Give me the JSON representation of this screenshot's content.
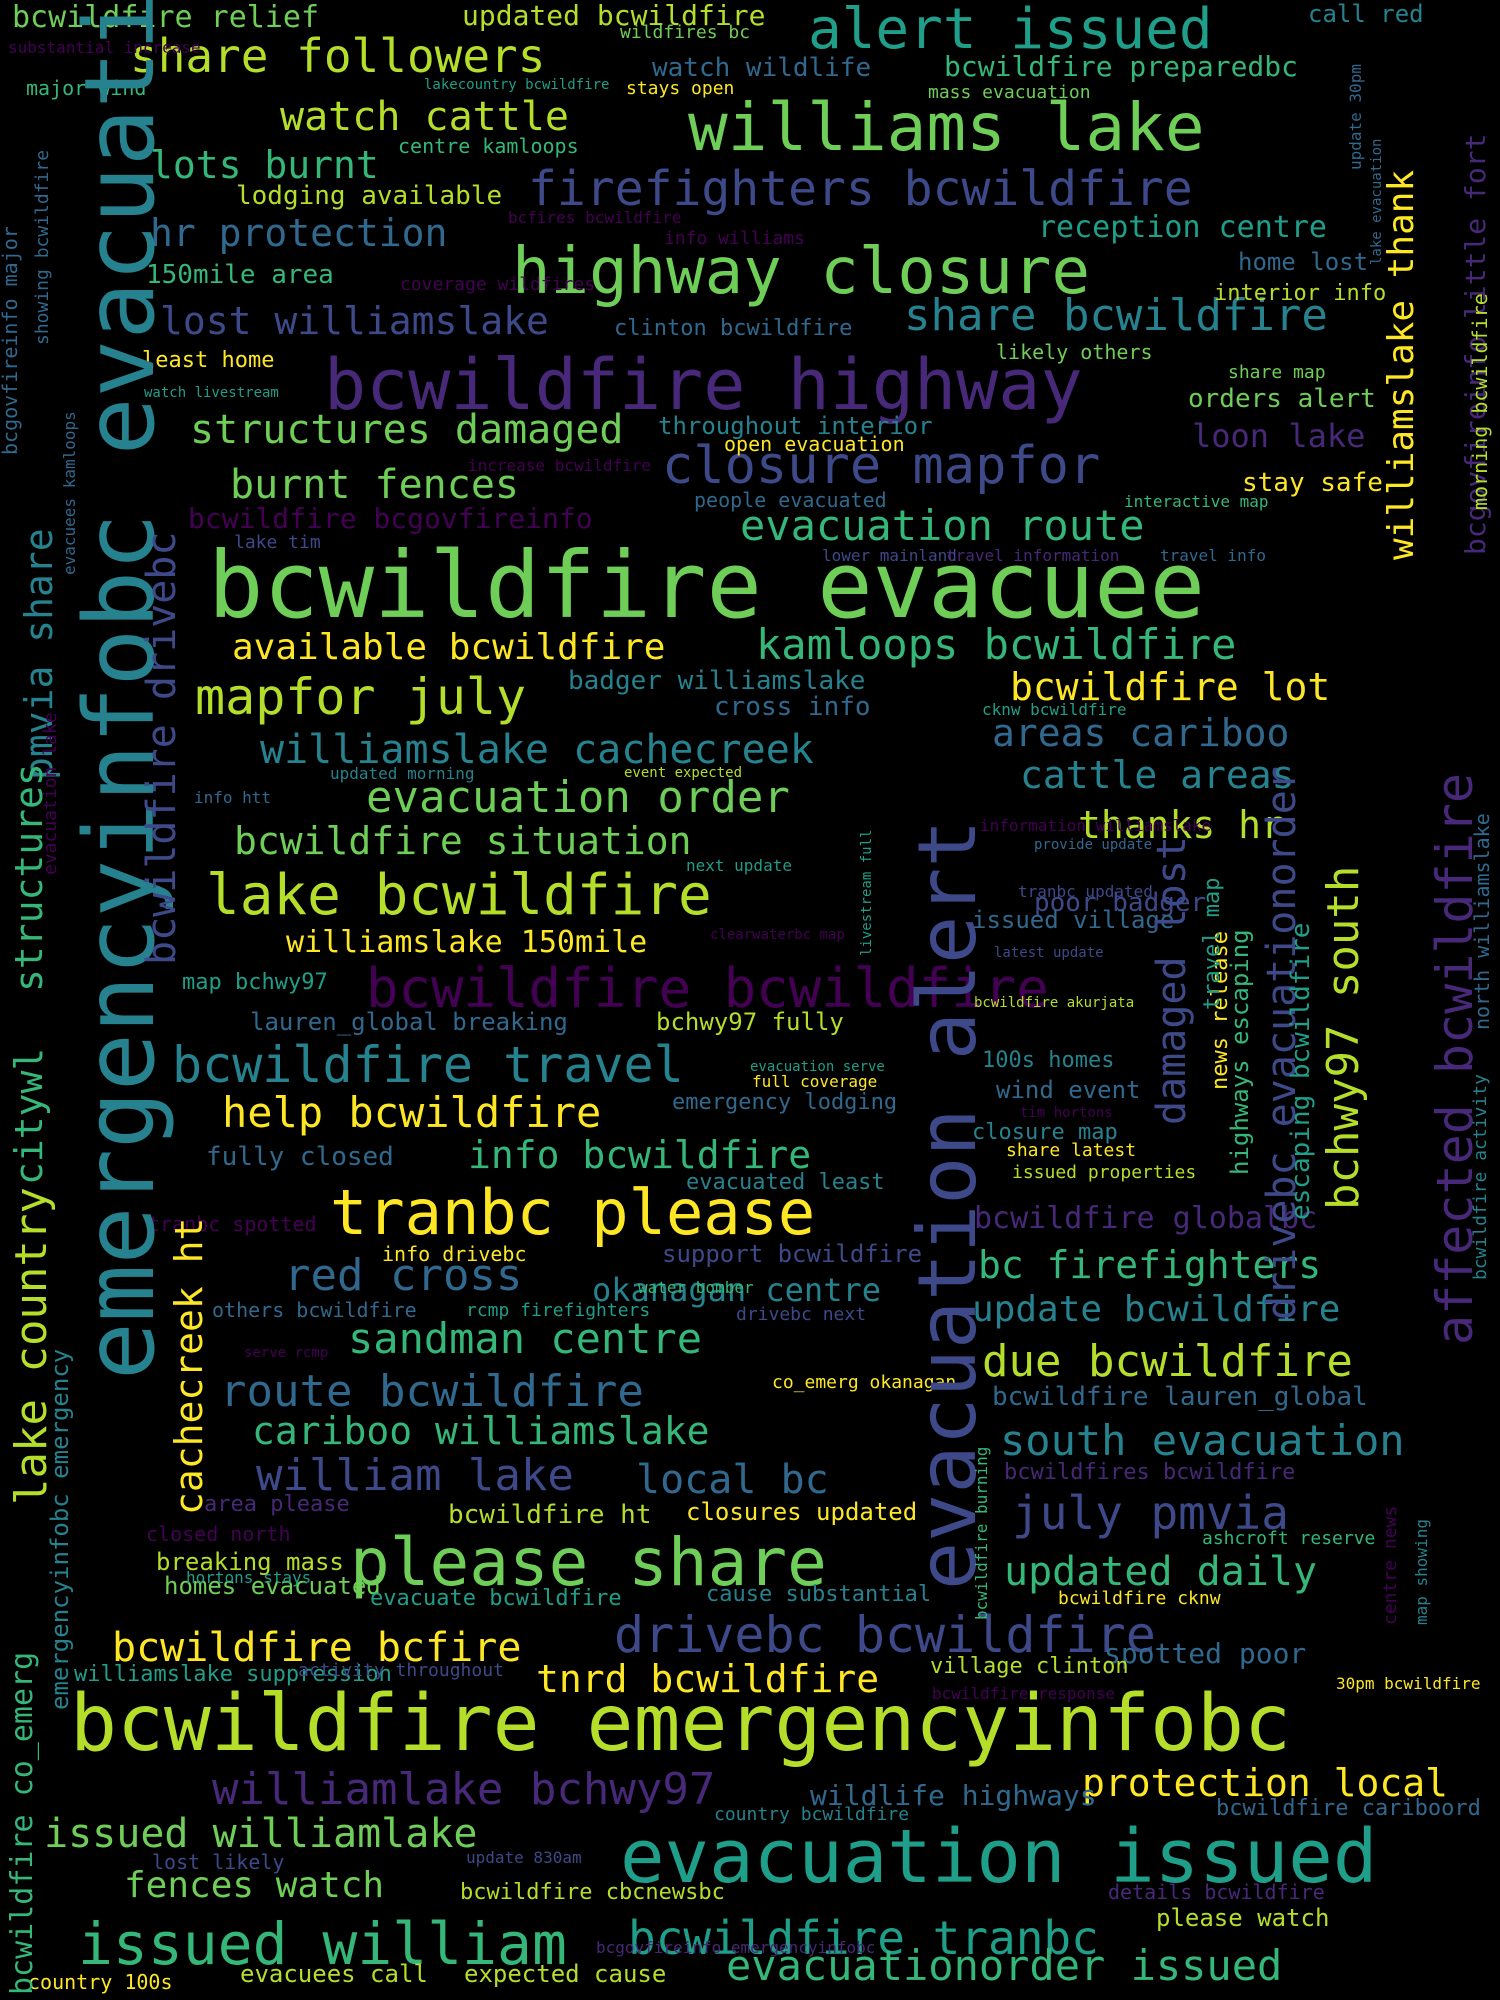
{
  "palette": {
    "background": "#000000",
    "yellow": "#fde725",
    "lime": "#b5de2b",
    "green": "#6ece58",
    "mint": "#35b779",
    "teal": "#1f9e89",
    "cyan": "#26828e",
    "blue": "#31688e",
    "indigo": "#3e4989",
    "violet": "#482878",
    "purple": "#440154"
  },
  "words": [
    {
      "text": "bcwildfire evacuee",
      "color": "#6ece58"
    },
    {
      "text": "emergencyinfobc evacuation",
      "color": "#26828e"
    },
    {
      "text": "evacuation alert",
      "color": "#3e4989"
    },
    {
      "text": "bcwildfire emergencyinfobc",
      "color": "#b5de2b"
    },
    {
      "text": "evacuation issued",
      "color": "#1f9e89"
    },
    {
      "text": "bcwildfire highway",
      "color": "#482878"
    },
    {
      "text": "highway closure",
      "color": "#6ece58"
    },
    {
      "text": "williams lake",
      "color": "#6ece58"
    },
    {
      "text": "tranbc please",
      "color": "#fde725"
    },
    {
      "text": "please share",
      "color": "#6ece58"
    },
    {
      "text": "issued william",
      "color": "#35b779"
    },
    {
      "text": "alert issued",
      "color": "#1f9e89"
    },
    {
      "text": "bcwildfire bcwildfire",
      "color": "#440154"
    },
    {
      "text": "closure mapfor",
      "color": "#3e4989"
    },
    {
      "text": "lake bcwildfire",
      "color": "#b5de2b"
    },
    {
      "text": "drivebc bcwildfire",
      "color": "#3e4989"
    },
    {
      "text": "affected bcwildfire",
      "color": "#482878"
    },
    {
      "text": "firefighters bcwildfire",
      "color": "#3e4989"
    },
    {
      "text": "mapfor july",
      "color": "#b5de2b"
    },
    {
      "text": "share followers",
      "color": "#b5de2b"
    },
    {
      "text": "bcwildfire travel",
      "color": "#26828e"
    },
    {
      "text": "lake country",
      "color": "#b5de2b"
    },
    {
      "text": "bcwildfire tranbc",
      "color": "#1f9e89"
    },
    {
      "text": "evacuationorder issued",
      "color": "#35b779"
    },
    {
      "text": "williamlake bchwy97",
      "color": "#482878"
    },
    {
      "text": "july pmvia",
      "color": "#3e4989"
    },
    {
      "text": "william lake",
      "color": "#3e4989"
    },
    {
      "text": "south evacuation",
      "color": "#26828e"
    },
    {
      "text": "evacuation order",
      "color": "#6ece58"
    },
    {
      "text": "bcwildfire drivebc",
      "color": "#3e4989"
    },
    {
      "text": "damaged lost",
      "color": "#3e4989"
    },
    {
      "text": "drivebc evacuationorder",
      "color": "#3e4989"
    },
    {
      "text": "bchwy97 south",
      "color": "#b5de2b"
    },
    {
      "text": "share bcwildfire",
      "color": "#26828e"
    },
    {
      "text": "kamloops bcwildfire",
      "color": "#35b779"
    },
    {
      "text": "evacuation route",
      "color": "#35b779"
    },
    {
      "text": "red cross",
      "color": "#31688e"
    },
    {
      "text": "sandman centre",
      "color": "#35b779"
    },
    {
      "text": "route bcwildfire",
      "color": "#31688e"
    },
    {
      "text": "due bcwildfire",
      "color": "#b5de2b"
    },
    {
      "text": "structures damaged",
      "color": "#6ece58"
    },
    {
      "text": "burnt fences",
      "color": "#6ece58"
    },
    {
      "text": "bcwildfire situation",
      "color": "#6ece58"
    },
    {
      "text": "williamslake cachecreek",
      "color": "#26828e"
    },
    {
      "text": "help bcwildfire",
      "color": "#fde725"
    },
    {
      "text": "info bcwildfire",
      "color": "#35b779"
    },
    {
      "text": "areas cariboo",
      "color": "#31688e"
    },
    {
      "text": "cattle areas",
      "color": "#26828e"
    },
    {
      "text": "bcwildfire lot",
      "color": "#fde725"
    },
    {
      "text": "available bcwildfire",
      "color": "#fde725"
    },
    {
      "text": "thanks hr",
      "color": "#b5de2b"
    },
    {
      "text": "cariboo williamslake",
      "color": "#35b779"
    },
    {
      "text": "bcwildfire bcfire",
      "color": "#fde725"
    },
    {
      "text": "tnrd bcwildfire",
      "color": "#fde725"
    },
    {
      "text": "protection local",
      "color": "#fde725"
    },
    {
      "text": "issued williamlake",
      "color": "#6ece58"
    },
    {
      "text": "fences watch",
      "color": "#6ece58"
    },
    {
      "text": "updated daily",
      "color": "#35b779"
    },
    {
      "text": "bc firefighters",
      "color": "#35b779"
    },
    {
      "text": "update bcwildfire",
      "color": "#26828e"
    },
    {
      "text": "okanagan centre",
      "color": "#26828e"
    },
    {
      "text": "local bc",
      "color": "#31688e"
    },
    {
      "text": "pmvia share",
      "color": "#26828e"
    },
    {
      "text": "structures",
      "color": "#35b779"
    },
    {
      "text": "citywl",
      "color": "#35b779"
    },
    {
      "text": "cachecreek ht",
      "color": "#fde725"
    },
    {
      "text": "williamslake thank",
      "color": "#fde725"
    },
    {
      "text": "bcgovfireinfo little fort",
      "color": "#482878"
    },
    {
      "text": "spotted poor",
      "color": "#31688e"
    },
    {
      "text": "watch cattle",
      "color": "#b5de2b"
    },
    {
      "text": "lots burnt",
      "color": "#35b779"
    },
    {
      "text": "hr protection",
      "color": "#31688e"
    },
    {
      "text": "lost williamslake",
      "color": "#3e4989"
    },
    {
      "text": "reception centre",
      "color": "#1f9e89"
    },
    {
      "text": "loon lake",
      "color": "#482878"
    },
    {
      "text": "bcwildfire relief",
      "color": "#6ece58"
    },
    {
      "text": "updated bcwildfire",
      "color": "#b5de2b"
    },
    {
      "text": "bcwildfire preparedbc",
      "color": "#35b779"
    },
    {
      "text": "watch wildlife",
      "color": "#31688e"
    },
    {
      "text": "call red",
      "color": "#26828e"
    },
    {
      "text": "bcwildfire bcgovfireinfo",
      "color": "#440154"
    },
    {
      "text": "bcwildfire globalbc",
      "color": "#482878"
    },
    {
      "text": "bcwildfire lauren_global",
      "color": "#31688e"
    },
    {
      "text": "bcwildfires bcwildfire",
      "color": "#482878"
    },
    {
      "text": "wildlife highways",
      "color": "#31688e"
    },
    {
      "text": "lodging available",
      "color": "#b5de2b"
    },
    {
      "text": "150mile area",
      "color": "#35b779"
    },
    {
      "text": "stay safe",
      "color": "#fde725"
    },
    {
      "text": "orders alert",
      "color": "#6ece58"
    },
    {
      "text": "home lost",
      "color": "#31688e"
    },
    {
      "text": "interior info",
      "color": "#b5de2b"
    },
    {
      "text": "williamslake 150mile",
      "color": "#fde725"
    },
    {
      "text": "badger williamslake",
      "color": "#26828e"
    },
    {
      "text": "cross info",
      "color": "#31688e"
    },
    {
      "text": "fully closed",
      "color": "#31688e"
    },
    {
      "text": "evacuated least",
      "color": "#26828e"
    },
    {
      "text": "lauren_global breaking",
      "color": "#31688e"
    },
    {
      "text": "bchwy97 fully",
      "color": "#b5de2b"
    },
    {
      "text": "map bchwy97",
      "color": "#1f9e89"
    },
    {
      "text": "poor badger",
      "color": "#3e4989"
    },
    {
      "text": "issued village",
      "color": "#31688e"
    },
    {
      "text": "highways escaping",
      "color": "#35b779"
    },
    {
      "text": "escaping bcwildfire",
      "color": "#1f9e89"
    },
    {
      "text": "news release",
      "color": "#fde725"
    },
    {
      "text": "travel map",
      "color": "#1f9e89"
    },
    {
      "text": "wind event",
      "color": "#31688e"
    },
    {
      "text": "100s homes",
      "color": "#26828e"
    },
    {
      "text": "closure map",
      "color": "#26828e"
    },
    {
      "text": "share latest",
      "color": "#fde725"
    },
    {
      "text": "issued properties",
      "color": "#b5de2b"
    },
    {
      "text": "area please",
      "color": "#482878"
    },
    {
      "text": "bcwildfire ht",
      "color": "#b5de2b"
    },
    {
      "text": "closures updated",
      "color": "#fde725"
    },
    {
      "text": "closed north",
      "color": "#440154"
    },
    {
      "text": "breaking mass",
      "color": "#b5de2b"
    },
    {
      "text": "homes evacuated",
      "color": "#6ece58"
    },
    {
      "text": "evacuate bcwildfire",
      "color": "#1f9e89"
    },
    {
      "text": "cause substantial",
      "color": "#26828e"
    },
    {
      "text": "bcwildfire cknw",
      "color": "#fde725"
    },
    {
      "text": "ashcroft reserve",
      "color": "#35b779"
    },
    {
      "text": "williamslake suppression",
      "color": "#1f9e89"
    },
    {
      "text": "village clinton",
      "color": "#b5de2b"
    },
    {
      "text": "bcwildfire cariboord",
      "color": "#31688e"
    },
    {
      "text": "lost likely",
      "color": "#3e4989"
    },
    {
      "text": "bcwildfire cbcnewsbc",
      "color": "#b5de2b"
    },
    {
      "text": "details bcwildfire",
      "color": "#482878"
    },
    {
      "text": "please watch",
      "color": "#b5de2b"
    },
    {
      "text": "evacuees call",
      "color": "#b5de2b"
    },
    {
      "text": "expected cause",
      "color": "#b5de2b"
    },
    {
      "text": "country 100s",
      "color": "#fde725"
    },
    {
      "text": "others bcwildfire",
      "color": "#31688e"
    },
    {
      "text": "info drivebc",
      "color": "#fde725"
    },
    {
      "text": "tranbc spotted",
      "color": "#440154"
    },
    {
      "text": "support bcwildfire",
      "color": "#3e4989"
    },
    {
      "text": "rcmp firefighters",
      "color": "#1f9e89"
    },
    {
      "text": "drivebc next",
      "color": "#3e4989"
    },
    {
      "text": "water bomber",
      "color": "#35b779"
    },
    {
      "text": "co_emerg okanagan",
      "color": "#fde725"
    },
    {
      "text": "emergency lodging",
      "color": "#31688e"
    },
    {
      "text": "clinton bcwildfire",
      "color": "#31688e"
    },
    {
      "text": "likely others",
      "color": "#6ece58"
    },
    {
      "text": "least home",
      "color": "#fde725"
    },
    {
      "text": "throughout interior",
      "color": "#26828e"
    },
    {
      "text": "people evacuated",
      "color": "#31688e"
    },
    {
      "text": "lake tim",
      "color": "#3e4989"
    },
    {
      "text": "lower mainland",
      "color": "#3e4989"
    },
    {
      "text": "travel information",
      "color": "#482878"
    },
    {
      "text": "travel info",
      "color": "#31688e"
    },
    {
      "text": "interactive map",
      "color": "#35b779"
    },
    {
      "text": "share map",
      "color": "#6ece58"
    },
    {
      "text": "coverage wildfires",
      "color": "#440154"
    },
    {
      "text": "watch livestream",
      "color": "#1f9e89"
    },
    {
      "text": "increase bcwildfire",
      "color": "#440154"
    },
    {
      "text": "open evacuation",
      "color": "#fde725"
    },
    {
      "text": "bcfires bcwildfire",
      "color": "#440154"
    },
    {
      "text": "info williams",
      "color": "#440154"
    },
    {
      "text": "mass evacuation",
      "color": "#6ece58"
    },
    {
      "text": "centre kamloops",
      "color": "#35b779"
    },
    {
      "text": "wildfires bc",
      "color": "#6ece58"
    },
    {
      "text": "stays open",
      "color": "#fde725"
    },
    {
      "text": "lakecountry bcwildfire",
      "color": "#1f9e89"
    },
    {
      "text": "major wind",
      "color": "#35b779"
    },
    {
      "text": "substantial increase",
      "color": "#440154"
    },
    {
      "text": "cknw bcwildfire",
      "color": "#1f9e89"
    },
    {
      "text": "updated morning",
      "color": "#26828e"
    },
    {
      "text": "event expected",
      "color": "#b5de2b"
    },
    {
      "text": "info htt",
      "color": "#31688e"
    },
    {
      "text": "information williamslake",
      "color": "#440154"
    },
    {
      "text": "provide update",
      "color": "#31688e"
    },
    {
      "text": "tranbc updated",
      "color": "#3e4989"
    },
    {
      "text": "next update",
      "color": "#1f9e89"
    },
    {
      "text": "clearwaterbc map",
      "color": "#440154"
    },
    {
      "text": "latest update",
      "color": "#3e4989"
    },
    {
      "text": "bcwildfire akurjata",
      "color": "#b5de2b"
    },
    {
      "text": "evacuation serve",
      "color": "#1f9e89"
    },
    {
      "text": "full coverage",
      "color": "#fde725"
    },
    {
      "text": "tim hortons",
      "color": "#440154"
    },
    {
      "text": "serve rcmp",
      "color": "#440154"
    },
    {
      "text": "hortons stays",
      "color": "#1f9e89"
    },
    {
      "text": "activity throughout",
      "color": "#3e4989"
    },
    {
      "text": "bcwildfire response",
      "color": "#440154"
    },
    {
      "text": "30pm bcwildfire",
      "color": "#fde725"
    },
    {
      "text": "country bcwildfire",
      "color": "#26828e"
    },
    {
      "text": "update 830am",
      "color": "#3e4989"
    },
    {
      "text": "bcgovfireinfo emergencyinfobc",
      "color": "#482878"
    },
    {
      "text": "livestream full",
      "color": "#1f9e89"
    },
    {
      "text": "bcwildfire burning",
      "color": "#35b779"
    },
    {
      "text": "centre news",
      "color": "#440154"
    },
    {
      "text": "map showing",
      "color": "#26828e"
    },
    {
      "text": "bcwildfire activity",
      "color": "#26828e"
    },
    {
      "text": "north williamslake",
      "color": "#31688e"
    },
    {
      "text": "morning bcwildfire",
      "color": "#b5de2b"
    },
    {
      "text": "update 30pm",
      "color": "#31688e"
    },
    {
      "text": "lake evacuation",
      "color": "#31688e"
    },
    {
      "text": "bcwildfire co_emerg",
      "color": "#35b779"
    },
    {
      "text": "emergencyinfobc emergency",
      "color": "#26828e"
    },
    {
      "text": "evacuation lake",
      "color": "#440154"
    },
    {
      "text": "evacuees kamloops",
      "color": "#31688e"
    },
    {
      "text": "bcgovfireinfo major",
      "color": "#31688e"
    },
    {
      "text": "showing bcwildfire",
      "color": "#31688e"
    }
  ]
}
